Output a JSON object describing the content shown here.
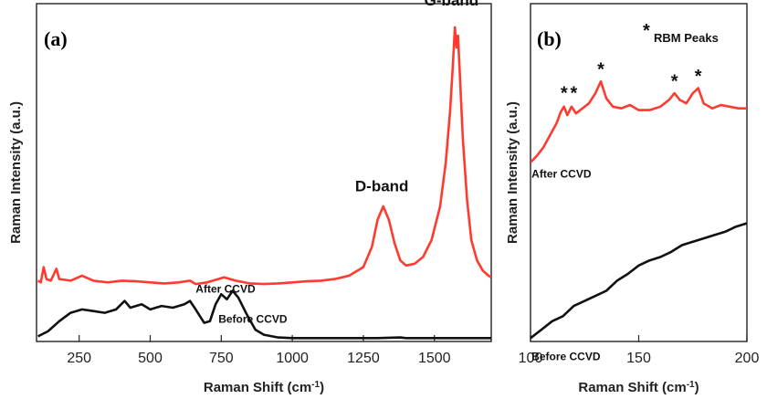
{
  "colors": {
    "after": "#ff3b30",
    "before": "#111111",
    "axis": "#222222"
  },
  "chart_data": [
    {
      "panel": "(a)",
      "type": "line",
      "xlabel": "Raman Shift (cm",
      "xlabel_sup": "-1",
      "xlabel_close": ")",
      "ylabel": "Raman Intensity (a.u.)",
      "xlim": [
        100,
        1700
      ],
      "ylim": [
        0,
        10
      ],
      "xticks": [
        250,
        500,
        750,
        1000,
        1250,
        1500
      ],
      "xtick_labels": [
        "250",
        "500",
        "750",
        "1000",
        "1250",
        "1500"
      ],
      "grid": false,
      "series": [
        {
          "name": "After CCVD",
          "color": "#ff3b30",
          "points": [
            [
              105,
              1.8
            ],
            [
              115,
              1.75
            ],
            [
              125,
              2.2
            ],
            [
              135,
              1.85
            ],
            [
              150,
              1.8
            ],
            [
              170,
              2.15
            ],
            [
              180,
              1.85
            ],
            [
              220,
              1.8
            ],
            [
              260,
              1.95
            ],
            [
              300,
              1.8
            ],
            [
              350,
              1.75
            ],
            [
              400,
              1.8
            ],
            [
              450,
              1.78
            ],
            [
              500,
              1.75
            ],
            [
              550,
              1.72
            ],
            [
              600,
              1.75
            ],
            [
              640,
              1.8
            ],
            [
              660,
              1.7
            ],
            [
              700,
              1.75
            ],
            [
              740,
              1.85
            ],
            [
              760,
              1.9
            ],
            [
              800,
              1.8
            ],
            [
              850,
              1.72
            ],
            [
              900,
              1.7
            ],
            [
              950,
              1.72
            ],
            [
              1000,
              1.75
            ],
            [
              1050,
              1.78
            ],
            [
              1100,
              1.8
            ],
            [
              1150,
              1.85
            ],
            [
              1200,
              1.95
            ],
            [
              1250,
              2.2
            ],
            [
              1280,
              2.8
            ],
            [
              1300,
              3.6
            ],
            [
              1320,
              4.0
            ],
            [
              1340,
              3.6
            ],
            [
              1360,
              2.9
            ],
            [
              1380,
              2.4
            ],
            [
              1400,
              2.25
            ],
            [
              1430,
              2.3
            ],
            [
              1460,
              2.5
            ],
            [
              1490,
              3.0
            ],
            [
              1520,
              4.0
            ],
            [
              1540,
              5.3
            ],
            [
              1555,
              6.8
            ],
            [
              1565,
              8.2
            ],
            [
              1572,
              9.3
            ],
            [
              1578,
              8.7
            ],
            [
              1583,
              9.05
            ],
            [
              1590,
              7.8
            ],
            [
              1600,
              6.0
            ],
            [
              1615,
              4.2
            ],
            [
              1630,
              3.0
            ],
            [
              1650,
              2.4
            ],
            [
              1670,
              2.1
            ],
            [
              1690,
              1.95
            ],
            [
              1700,
              1.9
            ]
          ]
        },
        {
          "name": "Before CCVD",
          "color": "#111111",
          "points": [
            [
              105,
              0.15
            ],
            [
              140,
              0.3
            ],
            [
              180,
              0.6
            ],
            [
              220,
              0.85
            ],
            [
              260,
              0.95
            ],
            [
              300,
              0.9
            ],
            [
              340,
              0.85
            ],
            [
              380,
              0.95
            ],
            [
              410,
              1.2
            ],
            [
              430,
              1.0
            ],
            [
              470,
              1.1
            ],
            [
              500,
              0.95
            ],
            [
              540,
              1.05
            ],
            [
              580,
              1.0
            ],
            [
              620,
              1.1
            ],
            [
              640,
              1.2
            ],
            [
              660,
              0.95
            ],
            [
              690,
              0.55
            ],
            [
              710,
              0.6
            ],
            [
              730,
              1.1
            ],
            [
              750,
              1.4
            ],
            [
              770,
              1.25
            ],
            [
              790,
              1.5
            ],
            [
              810,
              1.3
            ],
            [
              840,
              0.8
            ],
            [
              870,
              0.35
            ],
            [
              900,
              0.2
            ],
            [
              950,
              0.12
            ],
            [
              1000,
              0.1
            ],
            [
              1100,
              0.1
            ],
            [
              1200,
              0.1
            ],
            [
              1300,
              0.1
            ],
            [
              1380,
              0.12
            ],
            [
              1400,
              0.1
            ],
            [
              1500,
              0.1
            ],
            [
              1600,
              0.1
            ],
            [
              1700,
              0.1
            ]
          ]
        }
      ],
      "annotations": [
        {
          "text": "D-band",
          "x": 1315,
          "y": 4.45
        },
        {
          "text": "G-band",
          "x": 1560,
          "y": 9.95
        },
        {
          "text": "After CCVD",
          "x": 660,
          "y": 1.45
        },
        {
          "text": "Before CCVD",
          "x": 740,
          "y": 0.55
        }
      ]
    },
    {
      "panel": "(b)",
      "type": "line",
      "xlabel": "Raman Shift (cm",
      "xlabel_sup": "-1",
      "xlabel_close": ")",
      "ylabel": "Raman Intensity (a.u.)",
      "xlim": [
        100,
        200
      ],
      "ylim": [
        0,
        10
      ],
      "xticks": [
        100,
        150,
        200
      ],
      "xtick_labels": [
        "100",
        "150",
        "200"
      ],
      "grid": false,
      "legend_note": "RBM Peaks",
      "legend_star": "*",
      "series": [
        {
          "name": "After CCVD",
          "color": "#ff3b30",
          "points": [
            [
              100,
              5.3
            ],
            [
              103,
              5.5
            ],
            [
              106,
              5.75
            ],
            [
              109,
              6.1
            ],
            [
              112,
              6.45
            ],
            [
              114,
              6.8
            ],
            [
              115.5,
              6.95
            ],
            [
              117,
              6.7
            ],
            [
              119,
              6.95
            ],
            [
              121,
              6.75
            ],
            [
              124,
              6.9
            ],
            [
              127,
              7.05
            ],
            [
              130,
              7.35
            ],
            [
              132.5,
              7.7
            ],
            [
              135,
              7.2
            ],
            [
              138,
              6.95
            ],
            [
              142,
              6.9
            ],
            [
              146,
              7.0
            ],
            [
              150,
              6.85
            ],
            [
              155,
              6.85
            ],
            [
              160,
              6.95
            ],
            [
              164,
              7.15
            ],
            [
              166.5,
              7.35
            ],
            [
              169,
              7.15
            ],
            [
              172,
              7.05
            ],
            [
              175,
              7.35
            ],
            [
              177.5,
              7.5
            ],
            [
              180,
              7.05
            ],
            [
              184,
              6.9
            ],
            [
              188,
              7.0
            ],
            [
              192,
              6.95
            ],
            [
              196,
              6.9
            ],
            [
              200,
              6.9
            ]
          ]
        },
        {
          "name": "Before CCVD",
          "color": "#111111",
          "points": [
            [
              100,
              0.1
            ],
            [
              105,
              0.35
            ],
            [
              110,
              0.6
            ],
            [
              115,
              0.75
            ],
            [
              120,
              1.05
            ],
            [
              125,
              1.2
            ],
            [
              130,
              1.35
            ],
            [
              135,
              1.5
            ],
            [
              140,
              1.8
            ],
            [
              145,
              2.0
            ],
            [
              150,
              2.25
            ],
            [
              155,
              2.4
            ],
            [
              160,
              2.5
            ],
            [
              165,
              2.65
            ],
            [
              170,
              2.85
            ],
            [
              175,
              2.95
            ],
            [
              180,
              3.05
            ],
            [
              185,
              3.15
            ],
            [
              190,
              3.25
            ],
            [
              195,
              3.4
            ],
            [
              200,
              3.5
            ]
          ]
        }
      ],
      "stars": [
        {
          "x": 115.5,
          "y": 7.45
        },
        {
          "x": 120,
          "y": 7.45
        },
        {
          "x": 132.5,
          "y": 8.15
        },
        {
          "x": 166.5,
          "y": 7.8
        },
        {
          "x": 177.5,
          "y": 7.95
        }
      ],
      "annotations": [
        {
          "text": "After CCVD",
          "x": 100.5,
          "y": 4.85
        },
        {
          "text": "Before CCVD",
          "x": 100.5,
          "y": -0.55
        }
      ]
    }
  ]
}
